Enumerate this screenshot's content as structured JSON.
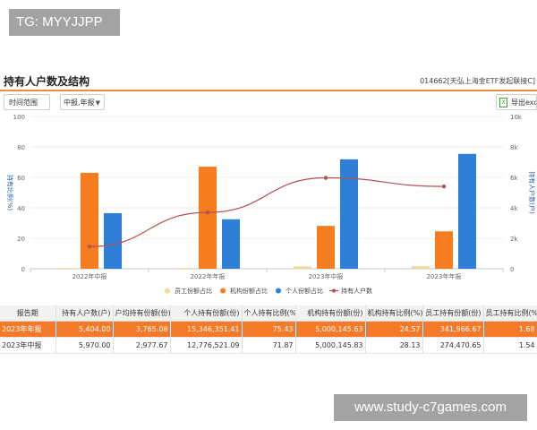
{
  "watermark_top": "TG: MYYJJPP",
  "watermark_bottom": "www.study-c7games.com",
  "header": {
    "title": "持有人户数及结构",
    "fund": "014662[天弘上海金ETF发起联接C]"
  },
  "controls": {
    "range_label": "时间范围",
    "period_label": "中报,年报",
    "export_label": "导出excel"
  },
  "colors": {
    "accent": "#f08a3c",
    "employee": "#f4d79a",
    "institution": "#f57c1f",
    "individual": "#2f7fd8",
    "holders_line": "#b5524f",
    "highlight_row": "#f47a2a"
  },
  "chart_data": {
    "type": "bar",
    "categories": [
      "2022年中报",
      "2022年年报",
      "2023年中报",
      "2023年年报"
    ],
    "ylabel_left": "持有比例(%)",
    "ylabel_right": "持有人户数(户)",
    "ylim_left": [
      0,
      100
    ],
    "yticks_left": [
      "0",
      "20",
      "40",
      "60",
      "80",
      "100"
    ],
    "ylim_right": [
      0,
      10000
    ],
    "yticks_right": [
      "0",
      "2k",
      "4k",
      "6k",
      "8k",
      "10k"
    ],
    "series": [
      {
        "name": "员工份额占比",
        "type": "bar",
        "axis": "left",
        "values": [
          0.5,
          0.5,
          1.54,
          1.68
        ]
      },
      {
        "name": "机构份额占比",
        "type": "bar",
        "axis": "left",
        "values": [
          63,
          67,
          28.13,
          24.57
        ]
      },
      {
        "name": "个人份额占比",
        "type": "bar",
        "axis": "left",
        "values": [
          36.5,
          32.5,
          71.87,
          75.43
        ]
      },
      {
        "name": "持有人户数",
        "type": "line",
        "axis": "right",
        "values": [
          1450,
          3700,
          5970,
          5404
        ]
      }
    ],
    "legend_position": "bottom",
    "grid": true
  },
  "table": {
    "headers": [
      "报告期",
      "持有人户数(户)",
      "户均持有份额(份)",
      "个人持有份额(份)",
      "个人持有比例(%)",
      "机构持有份额(份)",
      "机构持有比例(%)",
      "员工持有份额(份)",
      "员工持有比例(%)"
    ],
    "rows": [
      [
        "2023年年报",
        "5,404.00",
        "3,765.08",
        "15,346,351.41",
        "75.43",
        "5,000,145.63",
        "24.57",
        "341,966.67",
        "1.68"
      ],
      [
        "2023年中报",
        "5,970.00",
        "2,977.67",
        "12,776,521.09",
        "71.87",
        "5,000,145.83",
        "28.13",
        "274,470.65",
        "1.54"
      ]
    ]
  }
}
